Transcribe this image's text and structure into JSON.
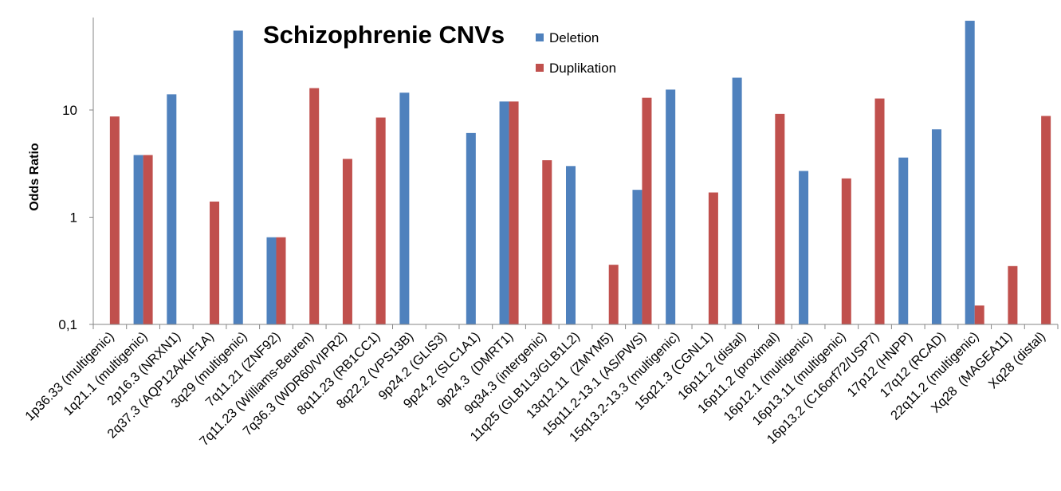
{
  "chart_data": {
    "type": "bar",
    "title": "Schizophrenie CNVs",
    "ylabel": "Odds Ratio",
    "xlabel": "",
    "y_scale": "log",
    "ylim": [
      0.1,
      70
    ],
    "y_ticks": [
      0.1,
      1,
      10
    ],
    "y_tick_labels": [
      "0,1",
      "1",
      "10"
    ],
    "grid": false,
    "legend_position": "top-center",
    "categories": [
      "1p36.33 (multigenic)",
      "1q21.1 (multigenic)",
      "2p16.3 (NRXN1)",
      "2q37.3 (AQP12A/KIF1A)",
      "3q29 (multigenic)",
      "7q11.21 (ZNF92)",
      "7q11.23 (Williams-Beuren)",
      "7q36.3 (WDR60/VIPR2)",
      "8q11.23 (RB1CC1)",
      "8q22.2 (VPS13B)",
      "9p24.2 (GLIS3)",
      "9p24.2 (SLC1A1)",
      "9p24.3  (DMRT1)",
      "9q34.3 (intergenic)",
      "11q25 (GLB1L3/GLB1L2)",
      "13q12.11  (ZMYM5)",
      "15q11.2-13.1 (AS/PWS)",
      "15q13.2-13.3 (multigenic)",
      "15q21.3 (CGNL1)",
      "16p11.2 (distal)",
      "16p11.2 (proximal)",
      "16p12.1 (multigenic)",
      "16p13.11 (multigenic)",
      "16p13.2 (C16orf72/USP7)",
      "17p12 (HNPP)",
      "17q12 (RCAD)",
      "22q11.2 (multigenic)",
      "Xq28  (MAGEA11)",
      "Xq28 (distal)"
    ],
    "series": [
      {
        "name": "Deletion",
        "color": "#4F81BD",
        "values": [
          null,
          3.8,
          14,
          null,
          55,
          0.65,
          null,
          null,
          null,
          14.5,
          null,
          6.1,
          12,
          null,
          3.0,
          null,
          1.8,
          15.5,
          null,
          20,
          null,
          2.7,
          null,
          null,
          3.6,
          6.6,
          68,
          null,
          null
        ]
      },
      {
        "name": "Duplikation",
        "color": "#C0504D",
        "values": [
          8.7,
          3.8,
          null,
          1.4,
          null,
          0.65,
          16,
          3.5,
          8.5,
          null,
          null,
          null,
          12,
          3.4,
          null,
          0.36,
          13,
          null,
          1.7,
          null,
          9.2,
          null,
          2.3,
          12.8,
          null,
          null,
          0.15,
          0.35,
          8.8
        ]
      }
    ]
  }
}
